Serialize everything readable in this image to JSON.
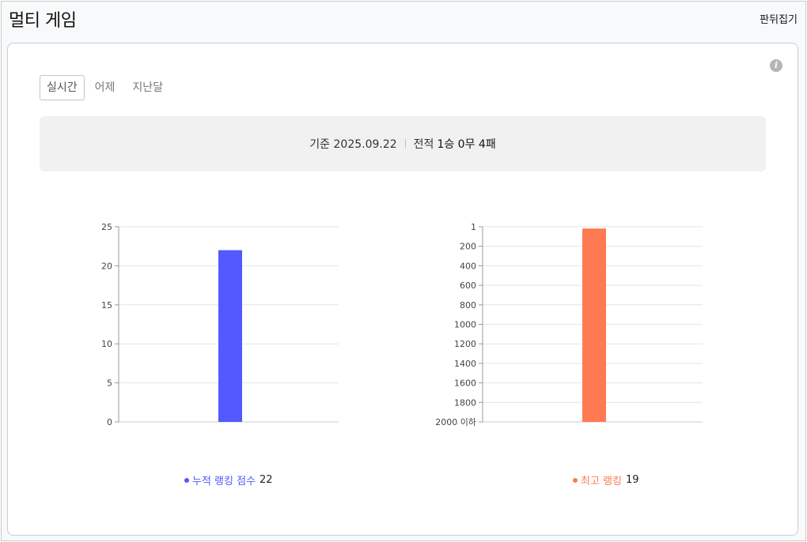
{
  "page": {
    "title": "멀티 게임",
    "fold_label": "판뒤집기"
  },
  "tabs": [
    {
      "label": "실시간",
      "active": true
    },
    {
      "label": "어제",
      "active": false
    },
    {
      "label": "지난달",
      "active": false
    }
  ],
  "summary": {
    "date_label": "기준 2025.09.22",
    "record_prefix": "전적",
    "record_value": "1승 0무 4패"
  },
  "colors": {
    "score": "#5259ff",
    "ranking": "#ff7a52"
  },
  "icons": {
    "info": "info-icon"
  },
  "chart_data": [
    {
      "type": "bar",
      "series": [
        {
          "name": "누적 랭킹 점수",
          "values": [
            22
          ]
        }
      ],
      "ylim": [
        0,
        25
      ],
      "yticks": [
        "0",
        "5",
        "10",
        "15",
        "20",
        "25"
      ],
      "legend": {
        "label": "누적 랭킹 점수",
        "value": "22"
      },
      "grid": true
    },
    {
      "type": "bar",
      "series": [
        {
          "name": "최고 랭킹",
          "values": [
            19
          ]
        }
      ],
      "y_inverted": true,
      "ylim": [
        1,
        2000
      ],
      "yticks": [
        "1",
        "200",
        "400",
        "600",
        "800",
        "1000",
        "1200",
        "1400",
        "1600",
        "1800",
        "2000 이하"
      ],
      "legend": {
        "label": "최고 랭킹",
        "value": "19"
      },
      "grid": true
    }
  ]
}
